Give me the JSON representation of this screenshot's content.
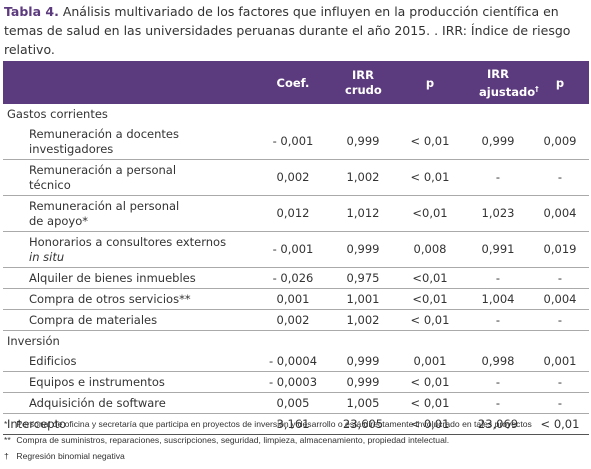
{
  "caption": {
    "label": "Tabla 4.",
    "text": "Análisis multivariado de los factores que influyen en la producción científica en temas de salud en las universidades peruanas durante el año 2015. . IRR: Índice de riesgo relativo."
  },
  "table": {
    "columns": [
      {
        "label": "Coef."
      },
      {
        "label": "IRR crudo"
      },
      {
        "label": "p"
      },
      {
        "label": "IRR ajustado",
        "sup": "†"
      },
      {
        "label": "p"
      }
    ],
    "groups": [
      {
        "title": "Gastos corrientes",
        "rows": [
          {
            "label": "Remuneración a docentes investigadores",
            "cells": [
              "- 0,001",
              "0,999",
              "< 0,01",
              "0,999",
              "0,009"
            ]
          },
          {
            "label": "Remuneración a personal técnico",
            "cells": [
              "0,002",
              "1,002",
              "< 0,01",
              "-",
              "-"
            ]
          },
          {
            "label": "Remuneración al personal de apoyo*",
            "cells": [
              "0,012",
              "1,012",
              "<0,01",
              "1,023",
              "0,004"
            ]
          },
          {
            "label": "Honorarios a consultores externos",
            "label_italic": "in situ",
            "cells": [
              "- 0,001",
              "0,999",
              "0,008",
              "0,991",
              "0,019"
            ]
          },
          {
            "label": "Alquiler de bienes inmuebles",
            "cells": [
              "- 0,026",
              "0,975",
              "<0,01",
              "-",
              "-"
            ]
          },
          {
            "label": "Compra de otros servicios**",
            "cells": [
              "0,001",
              "1,001",
              "<0,01",
              "1,004",
              "0,004"
            ]
          },
          {
            "label": "Compra de materiales",
            "cells": [
              "0,002",
              "1,002",
              "< 0,01",
              "-",
              "-"
            ]
          }
        ]
      },
      {
        "title": "Inversión",
        "rows": [
          {
            "label": "Edificios",
            "cells": [
              "- 0,0004",
              "0,999",
              "0,001",
              "0,998",
              "0,001"
            ]
          },
          {
            "label": "Equipos e instrumentos",
            "cells": [
              "- 0,0003",
              "0,999",
              "< 0,01",
              "-",
              "-"
            ]
          },
          {
            "label": "Adquisición de software",
            "cells": [
              "0,005",
              "1,005",
              "< 0,01",
              "-",
              "-"
            ]
          }
        ]
      }
    ],
    "total": {
      "label": "Intercepto",
      "cells": [
        "3,161",
        "23,605",
        "< 0,01",
        "23,069",
        "< 0,01"
      ]
    }
  },
  "footnotes": [
    {
      "symbol": "*",
      "text": "Personal de oficina y secretaría que participa en proyectos de inversión y desarrollo o está directamente involucrado en tales proyectos"
    },
    {
      "symbol": "**",
      "text": "Compra de suministros, reparaciones, suscripciones, seguridad, limpieza, almacenamiento, propiedad intelectual."
    },
    {
      "symbol": "†",
      "text": "Regresión binomial negativa"
    }
  ]
}
